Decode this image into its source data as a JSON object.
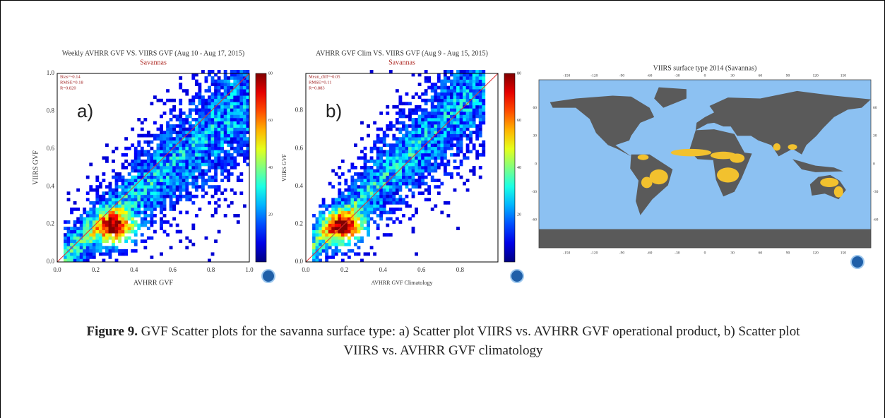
{
  "panels": [
    {
      "title": "Weekly AVHRR GVF VS. VIIRS GVF (Aug 10 - Aug 17, 2015)",
      "subtitle": "Savannas",
      "stats": [
        "Bias=-0.14",
        "RMSE=0.18",
        "R=0.820"
      ],
      "label": "a)",
      "x_label": "AVHRR GVF",
      "y_label": "VIIRS GVF",
      "x_ticks": [
        "0.0",
        "0.2",
        "0.4",
        "0.6",
        "0.8",
        "1.0"
      ],
      "y_ticks": [
        "0.0",
        "0.2",
        "0.4",
        "0.6",
        "0.8",
        "1.0"
      ],
      "colorbar_ticks": [
        "20",
        "40",
        "60",
        "80"
      ]
    },
    {
      "title": "AVHRR GVF Clim VS. VIIRS GVF (Aug 9 - Aug 15, 2015)",
      "subtitle": "Savannas",
      "stats": [
        "Mean_diff=-0.05",
        "RMSE=0.11",
        "R=0.883"
      ],
      "label": "b)",
      "x_label": "AVHRR GVF Climatology",
      "y_label": "VIIRS GVF",
      "x_ticks": [
        "0.0",
        "0.2",
        "0.4",
        "0.6",
        "0.8"
      ],
      "y_ticks": [
        "0.0",
        "0.2",
        "0.4",
        "0.6",
        "0.8"
      ],
      "colorbar_ticks": [
        "20",
        "40",
        "60",
        "80"
      ]
    }
  ],
  "map": {
    "title": "VIIRS surface type 2014 (Savannas)",
    "lon_ticks": [
      "-150",
      "-120",
      "-90",
      "-60",
      "-30",
      "0",
      "30",
      "60",
      "90",
      "120",
      "150"
    ],
    "lat_ticks": [
      "60",
      "30",
      "0",
      "-30",
      "-60"
    ]
  },
  "caption": {
    "label": "Figure 9.",
    "text": "GVF Scatter plots for the savanna surface type: a) Scatter plot VIIRS vs. AVHRR GVF operational product, b) Scatter plot VIIRS vs. AVHRR GVF climatology"
  }
}
